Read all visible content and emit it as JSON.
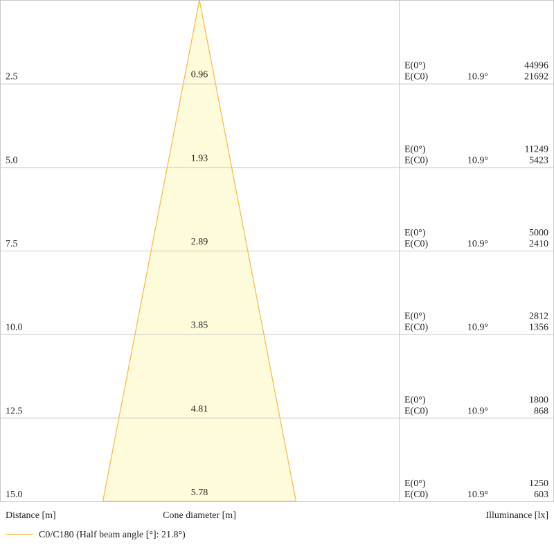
{
  "chart_data": {
    "type": "cone",
    "distances": [
      2.5,
      5,
      7.5,
      10,
      12.5,
      15
    ],
    "distance_labels": [
      "2.5",
      "5.0",
      "7.5",
      "10.0",
      "12.5",
      "15.0"
    ],
    "diameters": [
      0.96,
      1.93,
      2.89,
      3.85,
      4.81,
      5.78
    ],
    "e0_label": "E(0°)",
    "ec0_label": "E(C0)",
    "e0_values": [
      44996,
      11249,
      5000,
      2812,
      1800,
      1250
    ],
    "ec0_values": [
      21692,
      5423,
      2410,
      1356,
      868,
      603
    ],
    "angle_label": "10.9°",
    "x_label_left": "Distance [m]",
    "x_label_center": "Cone diameter [m]",
    "x_label_right": "Illuminance [lx]",
    "legend": "C0/C180 (Half beam angle [°]: 21.8°)",
    "color": "#f5b942",
    "fill": "#fdfbd9"
  }
}
